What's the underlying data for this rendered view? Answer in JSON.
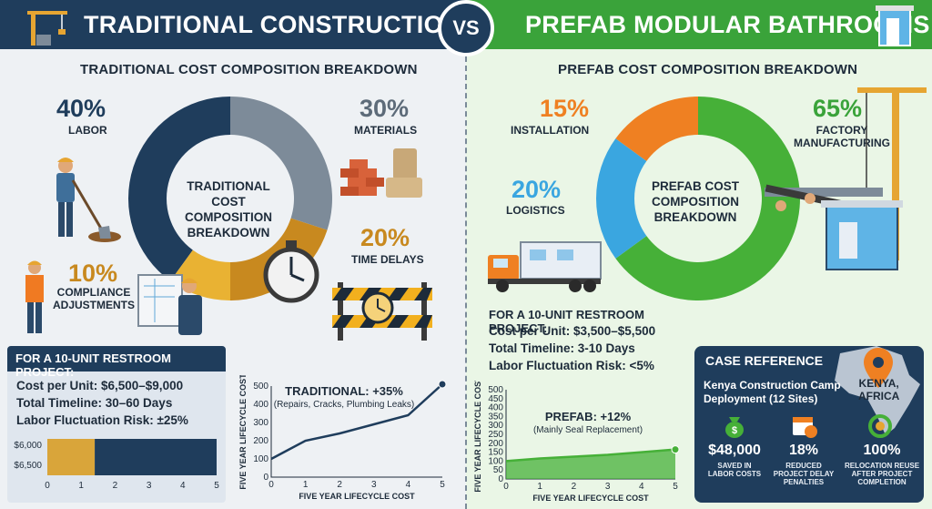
{
  "header": {
    "left_title": "TRADITIONAL CONSTRUCTION",
    "vs": "VS",
    "right_title": "PREFAB MODULAR BATHROOMS"
  },
  "traditional": {
    "subtitle": "TRADITIONAL COST COMPOSITION BREAKDOWN",
    "center_label_1": "TRADITIONAL",
    "center_label_2": "COST COMPOSITION",
    "center_label_3": "BREAKDOWN",
    "segments": [
      {
        "name": "LABOR",
        "pct_text": "40%",
        "value": 40,
        "color": "#1f3d5c"
      },
      {
        "name": "MATERIALS",
        "pct_text": "30%",
        "value": 30,
        "color": "#7d8b99"
      },
      {
        "name": "TIME DELAYS",
        "pct_text": "20%",
        "value": 20,
        "color": "#c8891f"
      },
      {
        "name_1": "COMPLIANCE",
        "name_2": "ADJUSTMENTS",
        "pct_text": "10%",
        "value": 10,
        "color": "#e9b233"
      }
    ],
    "project_title": "FOR A 10-UNIT RESTROOM PROJECT:",
    "cost_per_unit": "Cost per Unit: $6,500–$9,000",
    "timeline": "Total Timeline: 30–60 Days",
    "risk": "Labor Fluctuation Risk: ±25%"
  },
  "prefab": {
    "subtitle": "PREFAB COST COMPOSITION BREAKDOWN",
    "center_label_1": "PREFAB COST",
    "center_label_2": "COMPOSITION",
    "center_label_3": "BREAKDOWN",
    "segments": [
      {
        "name_1": "FACTORY",
        "name_2": "MANUFACTURING",
        "pct_text": "65%",
        "value": 65,
        "color": "#46b038"
      },
      {
        "name": "LOGISTICS",
        "pct_text": "20%",
        "value": 20,
        "color": "#3aa6e0"
      },
      {
        "name": "INSTALLATION",
        "pct_text": "15%",
        "value": 15,
        "color": "#ef8022"
      }
    ],
    "project_title": "FOR A 10-UNIT RESTROOM PROJECT:",
    "cost_per_unit": "Cost per Unit: $3,500–$5,500",
    "timeline": "Total Timeline: 3-10 Days",
    "risk": "Labor Fluctuation Risk: <5%"
  },
  "case": {
    "title": "CASE REFERENCE",
    "sub_1": "Kenya Construction Camp",
    "sub_2": "Deployment (12 Sites)",
    "map_label_1": "KENYA,",
    "map_label_2": "AFRICA",
    "stats": [
      {
        "value": "$48,000",
        "label_1": "SAVED IN",
        "label_2": "LABOR COSTS"
      },
      {
        "value": "18%",
        "label_1": "REDUCED",
        "label_2": "PROJECT DELAY",
        "label_3": "PENALTIES"
      },
      {
        "value": "100%",
        "label_1": "RELOCATION REUSE",
        "label_2": "AFTER PROJECT",
        "label_3": "COMPLETION"
      }
    ]
  },
  "chart_data": [
    {
      "type": "bar",
      "orientation": "horizontal",
      "y_tick_labels": [
        "$6,000",
        "$6,500"
      ],
      "x": [
        0,
        1,
        2,
        3,
        4,
        5
      ],
      "colors": [
        "#d9a53a",
        "#1f3d5c"
      ],
      "split_at": 1.4
    },
    {
      "type": "line",
      "title": "TRADITIONAL: +35%",
      "subtitle": "(Repairs, Cracks, Plumbing Leaks)",
      "xlabel": "FIVE YEAR LIFECYCLE COST",
      "ylabel": "FIVE YEAR LIFECYCLE COST",
      "xlim": [
        0,
        5
      ],
      "ylim": [
        0,
        500
      ],
      "y_ticks": [
        0,
        100,
        200,
        300,
        400,
        500
      ],
      "x_ticks": [
        0,
        1,
        2,
        3,
        4,
        5
      ],
      "x": [
        0,
        0.5,
        1,
        2,
        3,
        4,
        5
      ],
      "y": [
        100,
        150,
        200,
        240,
        290,
        340,
        510
      ],
      "color": "#1f3d5c"
    },
    {
      "type": "area",
      "title": "PREFAB: +12%",
      "subtitle": "(Mainly Seal Replacement)",
      "xlabel": "FIVE YEAR LIFECYCLE COST",
      "ylabel": "FIVE YEAR LIFECYCLE COST",
      "xlim": [
        0,
        5
      ],
      "ylim": [
        0,
        500
      ],
      "y_ticks": [
        0,
        50,
        100,
        150,
        200,
        250,
        300,
        350,
        400,
        450,
        500
      ],
      "x_ticks": [
        0,
        1,
        2,
        3,
        4,
        5
      ],
      "x": [
        0,
        1,
        2,
        3,
        4,
        5
      ],
      "y": [
        100,
        115,
        125,
        135,
        150,
        165
      ],
      "color": "#46b038"
    }
  ]
}
